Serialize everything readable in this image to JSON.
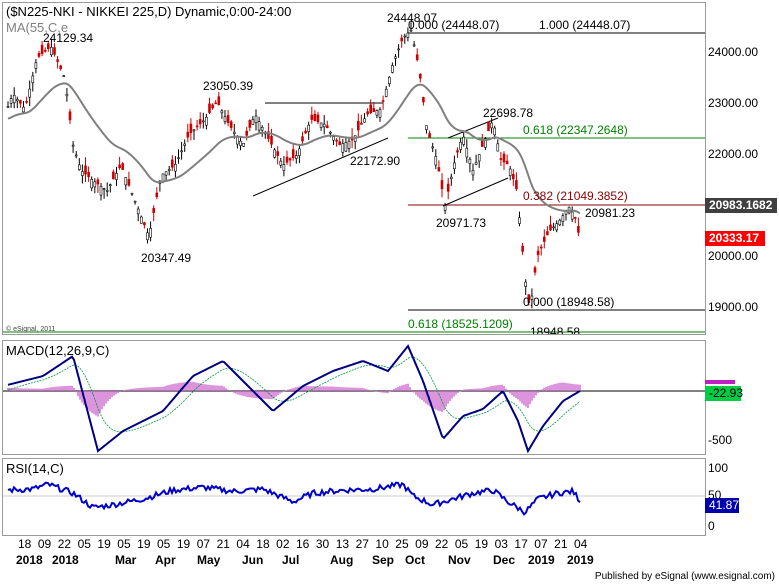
{
  "header": {
    "title": "($N225-NKI - NIKKEI 225,D) Dynamic,0:00-24:00",
    "ma_label": "MA(55,C,e"
  },
  "price_axis": [
    "24000.00",
    "23000.00",
    "22000.00",
    "21000.00",
    "20000.00",
    "19000.00"
  ],
  "price_tags": {
    "ma": "20983.1682",
    "last": "20333.17"
  },
  "price_annotations": {
    "high_aug": "24129.34",
    "low_mar": "20347.49",
    "may_high": "23050.39",
    "aug_low": "22172.90",
    "oct_high": "24448.07",
    "nov_low": "20971.73",
    "nov_high": "22698.78",
    "dec_low": "18948.58",
    "last_swing": "20981.23"
  },
  "fib": {
    "f0_top": "0.000 (24448.07)",
    "f1": "1.000 (24448.07)",
    "f618_up": "0.618 (22347.2648)",
    "f382": "0.382 (21049.3852)",
    "f0_bottom": "0.000 (18948.58)",
    "f618_down": "0.618 (18525.1209)"
  },
  "watermark": "© eSignal, 2011",
  "macd": {
    "label": "MACD(12,26,9,C)",
    "axis": [
      "-500"
    ],
    "tag": "-22.93"
  },
  "rsi": {
    "label": "RSI(14,C)",
    "axis": [
      "100",
      "50",
      "0"
    ],
    "tag": "41.87"
  },
  "x_axis": {
    "days": [
      "18",
      "09",
      "22",
      "05",
      "19",
      "05",
      "19",
      "05",
      "19",
      "07",
      "21",
      "04",
      "18",
      "02",
      "16",
      "30",
      "13",
      "27",
      "10",
      "25",
      "09",
      "22",
      "05",
      "19",
      "03",
      "17",
      "07",
      "21",
      "04"
    ],
    "years": [
      "2018",
      "2018",
      "Mar",
      "Apr",
      "May",
      "Jun",
      "Jul",
      "Aug",
      "Sep",
      "Oct",
      "Nov",
      "Dec",
      "2019",
      "2019"
    ]
  },
  "footer": "Published by eSignal (www.esignal.com)",
  "colors": {
    "ma_line": "#808080",
    "fib_green": "#008000",
    "fib_red": "#8b0000",
    "macd_line": "#000080",
    "macd_hist": "#cc66cc",
    "rsi_line": "#0000cc",
    "last_tag_bg": "#ff0000",
    "ma_tag_bg": "#404040"
  }
}
